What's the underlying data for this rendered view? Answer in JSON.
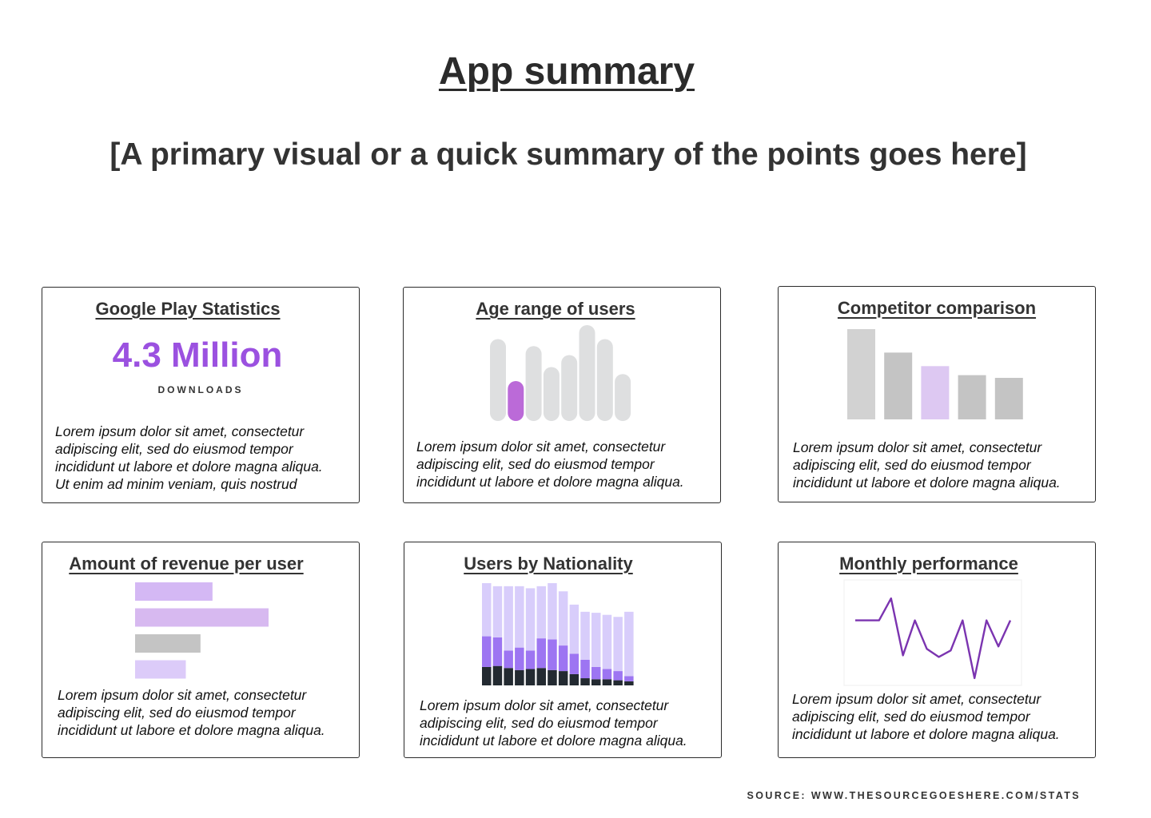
{
  "page": {
    "title": "App summary",
    "subtitle": "[A primary visual or a quick summary of the points goes here]",
    "source": "SOURCE: WWW.THESOURCEGOESHERE.COM/STATS"
  },
  "cards": {
    "google_play": {
      "title": "Google Play Statistics",
      "value": "4.3 Million",
      "caption": "DOWNLOADS",
      "text": "Lorem ipsum dolor sit amet, consectetur\nadipiscing elit, sed do eiusmod tempor\nincididunt ut labore et dolore magna aliqua.\nUt enim ad minim veniam, quis nostrud"
    },
    "age_range": {
      "title": "Age range of users",
      "text": "Lorem ipsum dolor sit amet, consectetur\nadipiscing elit, sed do eiusmod tempor\nincididunt ut labore et dolore magna aliqua."
    },
    "competitor": {
      "title": "Competitor comparison",
      "text": "Lorem ipsum dolor sit amet, consectetur\nadipiscing elit, sed do eiusmod tempor\nincididunt ut labore et dolore magna aliqua."
    },
    "revenue": {
      "title": "Amount of revenue per user",
      "text": "Lorem ipsum dolor sit amet, consectetur\nadipiscing elit, sed do eiusmod tempor\nincididunt ut labore et dolore magna aliqua."
    },
    "nationality": {
      "title": "Users by Nationality",
      "text": "Lorem ipsum dolor sit amet, consectetur\nadipiscing elit, sed do eiusmod tempor\nincididunt ut labore et dolore magna aliqua."
    },
    "monthly": {
      "title": "Monthly performance",
      "text": "Lorem ipsum dolor sit amet, consectetur\nadipiscing elit, sed do eiusmod tempor\nincididunt ut labore et dolore magna aliqua."
    }
  },
  "chart_data": [
    {
      "chart": "age_range",
      "type": "bar",
      "values": [
        82,
        40,
        75,
        54,
        66,
        96,
        82,
        47
      ],
      "highlight_index": 1,
      "ylim": [
        0,
        100
      ],
      "colors": {
        "base": "#dedfe0",
        "highlight": "#bb6ad8"
      }
    },
    {
      "chart": "competitor",
      "type": "bar",
      "values": [
        100,
        74,
        59,
        49,
        46
      ],
      "ylim": [
        0,
        100
      ],
      "colors": [
        "#d2d2d2",
        "#c4c4c4",
        "#ddc8f2",
        "#c4c4c4",
        "#c4c4c4"
      ]
    },
    {
      "chart": "revenue",
      "type": "bar",
      "orientation": "horizontal",
      "values": [
        58,
        100,
        49,
        38
      ],
      "xlim": [
        0,
        100
      ],
      "colors": [
        "#d4b8f4",
        "#d7b9f0",
        "#c4c4c4",
        "#dccbf9"
      ]
    },
    {
      "chart": "nationality",
      "type": "bar",
      "stacked": true,
      "ylim": [
        0,
        100
      ],
      "series": [
        {
          "values": [
            18,
            19,
            17,
            15,
            16,
            17,
            15,
            14,
            11,
            7,
            6,
            6,
            5,
            4
          ]
        },
        {
          "values": [
            30,
            28,
            17,
            22,
            18,
            29,
            30,
            25,
            20,
            18,
            12,
            10,
            9,
            5
          ]
        },
        {
          "values": [
            52,
            50,
            63,
            60,
            61,
            51,
            55,
            53,
            48,
            47,
            53,
            53,
            53,
            63
          ]
        }
      ],
      "colors": [
        "#232a31",
        "#9d75f2",
        "#d8cdfb"
      ]
    },
    {
      "chart": "monthly",
      "type": "line",
      "x": [
        0,
        1,
        2,
        3,
        4,
        5,
        6,
        7,
        8,
        9,
        10,
        11,
        12,
        13
      ],
      "y": [
        48,
        48,
        48,
        75,
        5,
        48,
        13,
        3,
        11,
        48,
        -23,
        48,
        16,
        48
      ],
      "ylim": [
        -30,
        80
      ],
      "colors": {
        "line": "#7b34b0",
        "frame": "#efefef"
      }
    }
  ]
}
